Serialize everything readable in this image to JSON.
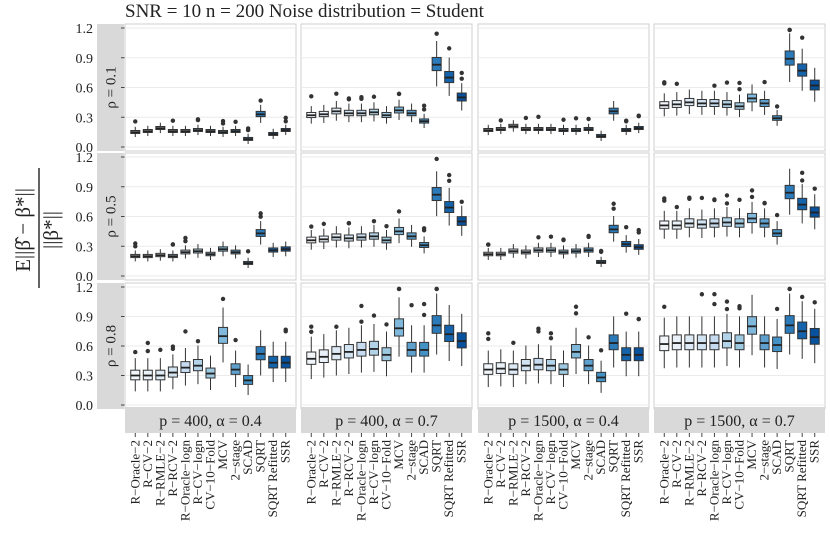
{
  "chart_data": {
    "type": "boxplot",
    "title": "SNR = 10 n = 200 Noise distribution = Student",
    "ylabel": "E||β̂ − β*|| / ||β*||",
    "ylabel_numerator": "E||β̂ − β*||",
    "ylabel_denominator": "||β*||",
    "ylim": [
      0,
      1.2
    ],
    "yticks": [
      "0.0",
      "0.3",
      "0.6",
      "0.9",
      "1.2"
    ],
    "row_labels": [
      "ρ = 0.1",
      "ρ = 0.5",
      "ρ = 0.8"
    ],
    "col_labels": [
      "p = 400, α = 0.4",
      "p = 400, α = 0.7",
      "p = 1500, α = 0.4",
      "p = 1500, α = 0.7"
    ],
    "methods": [
      "R−Oracle−2",
      "R−CV−2",
      "R−RMLE−2",
      "R−RCV−2",
      "R−Oracle−logn",
      "R−CV−logn",
      "CV−10−Fold",
      "MCV",
      "2−stage",
      "SCAD",
      "SQRT",
      "SQRT Refitted",
      "SSR"
    ],
    "method_colors": [
      "#f2f6fb",
      "#eaf1f9",
      "#deebf7",
      "#d2e3f2",
      "#c6dbef",
      "#b3d3e8",
      "#9ecae1",
      "#7fb8da",
      "#5ea1ce",
      "#4292c6",
      "#2b7bba",
      "#1563aa",
      "#08519c"
    ],
    "panels": [
      [
        {
          "medians": [
            0.15,
            0.16,
            0.19,
            0.16,
            0.16,
            0.17,
            0.16,
            0.15,
            0.16,
            0.08,
            0.33,
            0.13,
            0.17
          ]
        },
        {
          "medians": [
            0.32,
            0.33,
            0.36,
            0.34,
            0.34,
            0.35,
            0.32,
            0.37,
            0.34,
            0.26,
            0.83,
            0.7,
            0.5
          ]
        },
        {
          "medians": [
            0.17,
            0.18,
            0.21,
            0.18,
            0.18,
            0.18,
            0.17,
            0.17,
            0.18,
            0.11,
            0.36,
            0.17,
            0.19
          ]
        },
        {
          "medians": [
            0.42,
            0.43,
            0.45,
            0.44,
            0.44,
            0.43,
            0.41,
            0.49,
            0.44,
            0.29,
            0.89,
            0.77,
            0.62
          ]
        }
      ],
      [
        {
          "medians": [
            0.2,
            0.2,
            0.21,
            0.2,
            0.24,
            0.25,
            0.22,
            0.27,
            0.24,
            0.13,
            0.43,
            0.26,
            0.27
          ]
        },
        {
          "medians": [
            0.36,
            0.37,
            0.39,
            0.38,
            0.39,
            0.4,
            0.36,
            0.45,
            0.4,
            0.31,
            0.82,
            0.69,
            0.55
          ]
        },
        {
          "medians": [
            0.22,
            0.22,
            0.25,
            0.24,
            0.26,
            0.26,
            0.24,
            0.25,
            0.26,
            0.14,
            0.47,
            0.32,
            0.29
          ]
        },
        {
          "medians": [
            0.51,
            0.51,
            0.53,
            0.52,
            0.53,
            0.54,
            0.53,
            0.58,
            0.53,
            0.43,
            0.84,
            0.72,
            0.64
          ]
        }
      ],
      [
        {
          "medians": [
            0.3,
            0.3,
            0.3,
            0.33,
            0.38,
            0.4,
            0.32,
            0.7,
            0.36,
            0.25,
            0.52,
            0.43,
            0.43
          ]
        },
        {
          "medians": [
            0.47,
            0.49,
            0.52,
            0.54,
            0.56,
            0.57,
            0.51,
            0.78,
            0.56,
            0.56,
            0.81,
            0.72,
            0.65
          ]
        },
        {
          "medians": [
            0.36,
            0.37,
            0.36,
            0.4,
            0.41,
            0.4,
            0.36,
            0.54,
            0.4,
            0.28,
            0.63,
            0.51,
            0.51
          ]
        },
        {
          "medians": [
            0.62,
            0.63,
            0.63,
            0.63,
            0.63,
            0.65,
            0.63,
            0.8,
            0.63,
            0.61,
            0.81,
            0.75,
            0.69
          ]
        }
      ]
    ]
  }
}
